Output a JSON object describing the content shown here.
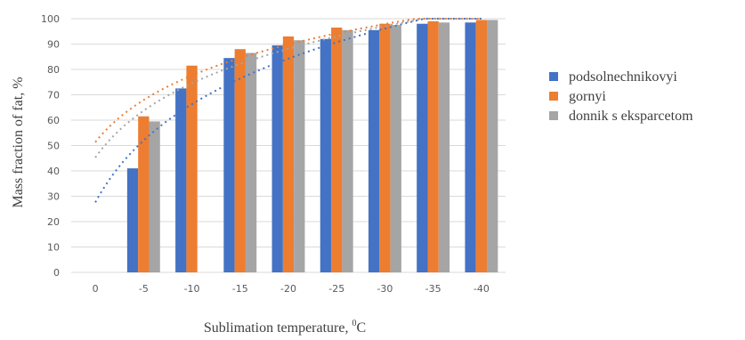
{
  "chart_data": {
    "type": "bar",
    "categories": [
      "0",
      "-5",
      "-10",
      "-15",
      "-20",
      "-25",
      "-30",
      "-35",
      "-40"
    ],
    "series": [
      {
        "name": "podsolnechnikovyi",
        "color": "#4472c4",
        "values": [
          null,
          41,
          72.5,
          84.5,
          89.5,
          92,
          95.5,
          98,
          98.5
        ]
      },
      {
        "name": "gornyi",
        "color": "#ed7d31",
        "values": [
          null,
          61.5,
          81.5,
          88,
          93,
          96.5,
          98,
          99,
          99.5
        ]
      },
      {
        "name": "donnik s eksparcetom",
        "color": "#a5a5a5",
        "values": [
          null,
          59.5,
          null,
          86.5,
          91.5,
          95.5,
          97.5,
          98.5,
          99.5
        ]
      }
    ],
    "trendlines": "logarithmic, dotted, one per series",
    "yticks": [
      "0",
      "10",
      "20",
      "30",
      "40",
      "50",
      "60",
      "70",
      "80",
      "90",
      "100"
    ],
    "ylim": [
      0,
      100
    ],
    "ylabel": "Mass fraction of fat, %",
    "xlabel": "Sublimation temperature, ",
    "xlabel_sup": "0",
    "xlabel_unit": "C",
    "grid": true,
    "legend": "right"
  }
}
